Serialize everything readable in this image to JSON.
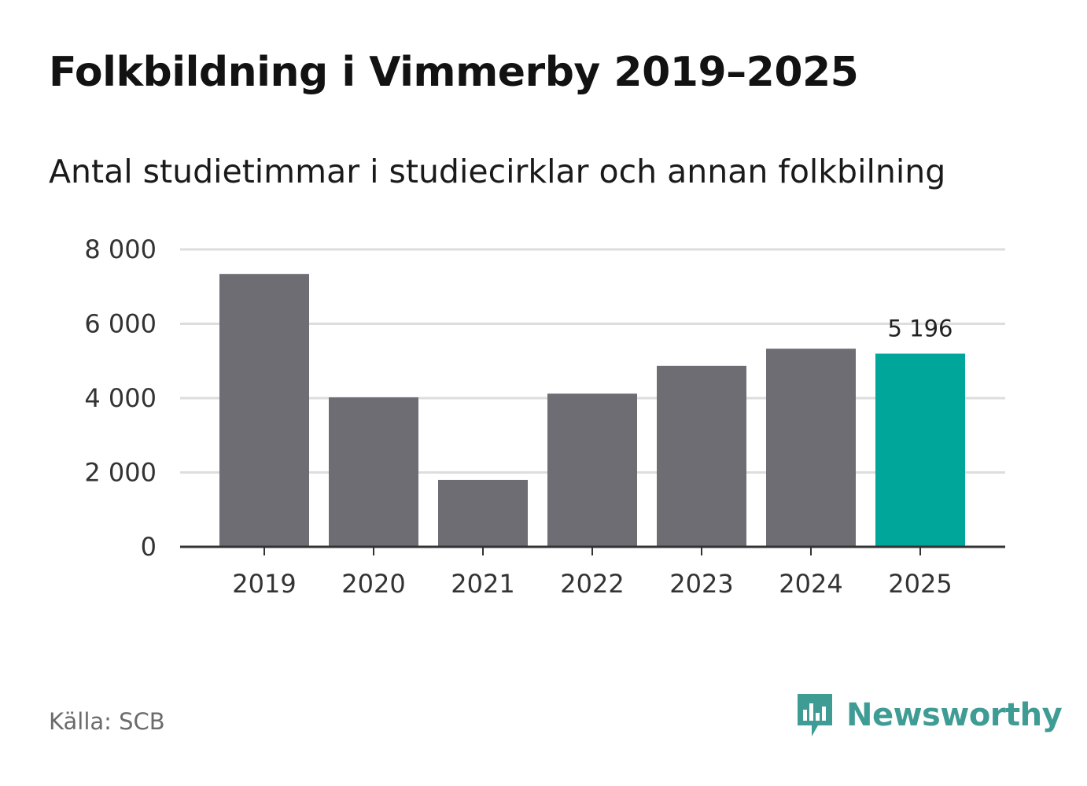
{
  "header": {
    "title": "Folkbildning i Vimmerby 2019–2025",
    "subtitle": "Antal studietimmar i studiecirklar och annan folkbilning"
  },
  "footer": {
    "source": "Källa: SCB",
    "brand": "Newsworthy"
  },
  "colors": {
    "bar": "#6e6d73",
    "highlight": "#00a699",
    "grid": "#dddddd",
    "axis": "#333333",
    "brand": "#3f9c94"
  },
  "chart_data": {
    "type": "bar",
    "title": "Folkbildning i Vimmerby 2019–2025",
    "subtitle": "Antal studietimmar i studiecirklar och annan folkbilning",
    "xlabel": "",
    "ylabel": "",
    "categories": [
      "2019",
      "2020",
      "2021",
      "2022",
      "2023",
      "2024",
      "2025"
    ],
    "values": [
      7340,
      4020,
      1800,
      4120,
      4870,
      5330,
      5196
    ],
    "highlight_index": 6,
    "data_labels": [
      {
        "index": 6,
        "text": "5 196"
      }
    ],
    "ylim": [
      0,
      8000
    ],
    "yticks": [
      0,
      2000,
      4000,
      6000,
      8000
    ],
    "ytick_labels": [
      "0",
      "2 000",
      "4 000",
      "6 000",
      "8 000"
    ],
    "grid": true,
    "legend": "none"
  }
}
